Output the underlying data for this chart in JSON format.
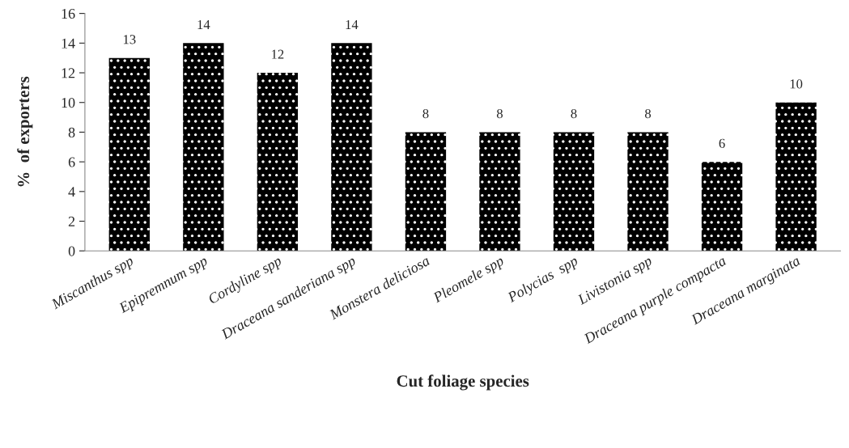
{
  "chart_data": {
    "type": "bar",
    "xlabel": "Cut foliage species",
    "ylabel": "%  of exporters",
    "categories": [
      "Miscanthus spp",
      "Epipremnum spp",
      "Cordyline spp",
      "Draceana sanderiana spp",
      "Monstera deliciosa",
      "Pleomele spp",
      "Polycias  spp",
      "Livistonia spp",
      "Draceana purple compacta",
      "Draceana marginata"
    ],
    "values": [
      13,
      14,
      12,
      14,
      8,
      8,
      8,
      8,
      6,
      10
    ],
    "color": "#000000",
    "ylim": [
      0,
      16
    ],
    "yticks": [
      0,
      2,
      4,
      6,
      8,
      10,
      12,
      14,
      16
    ],
    "data_labels": true,
    "grid": false,
    "legend": false
  }
}
